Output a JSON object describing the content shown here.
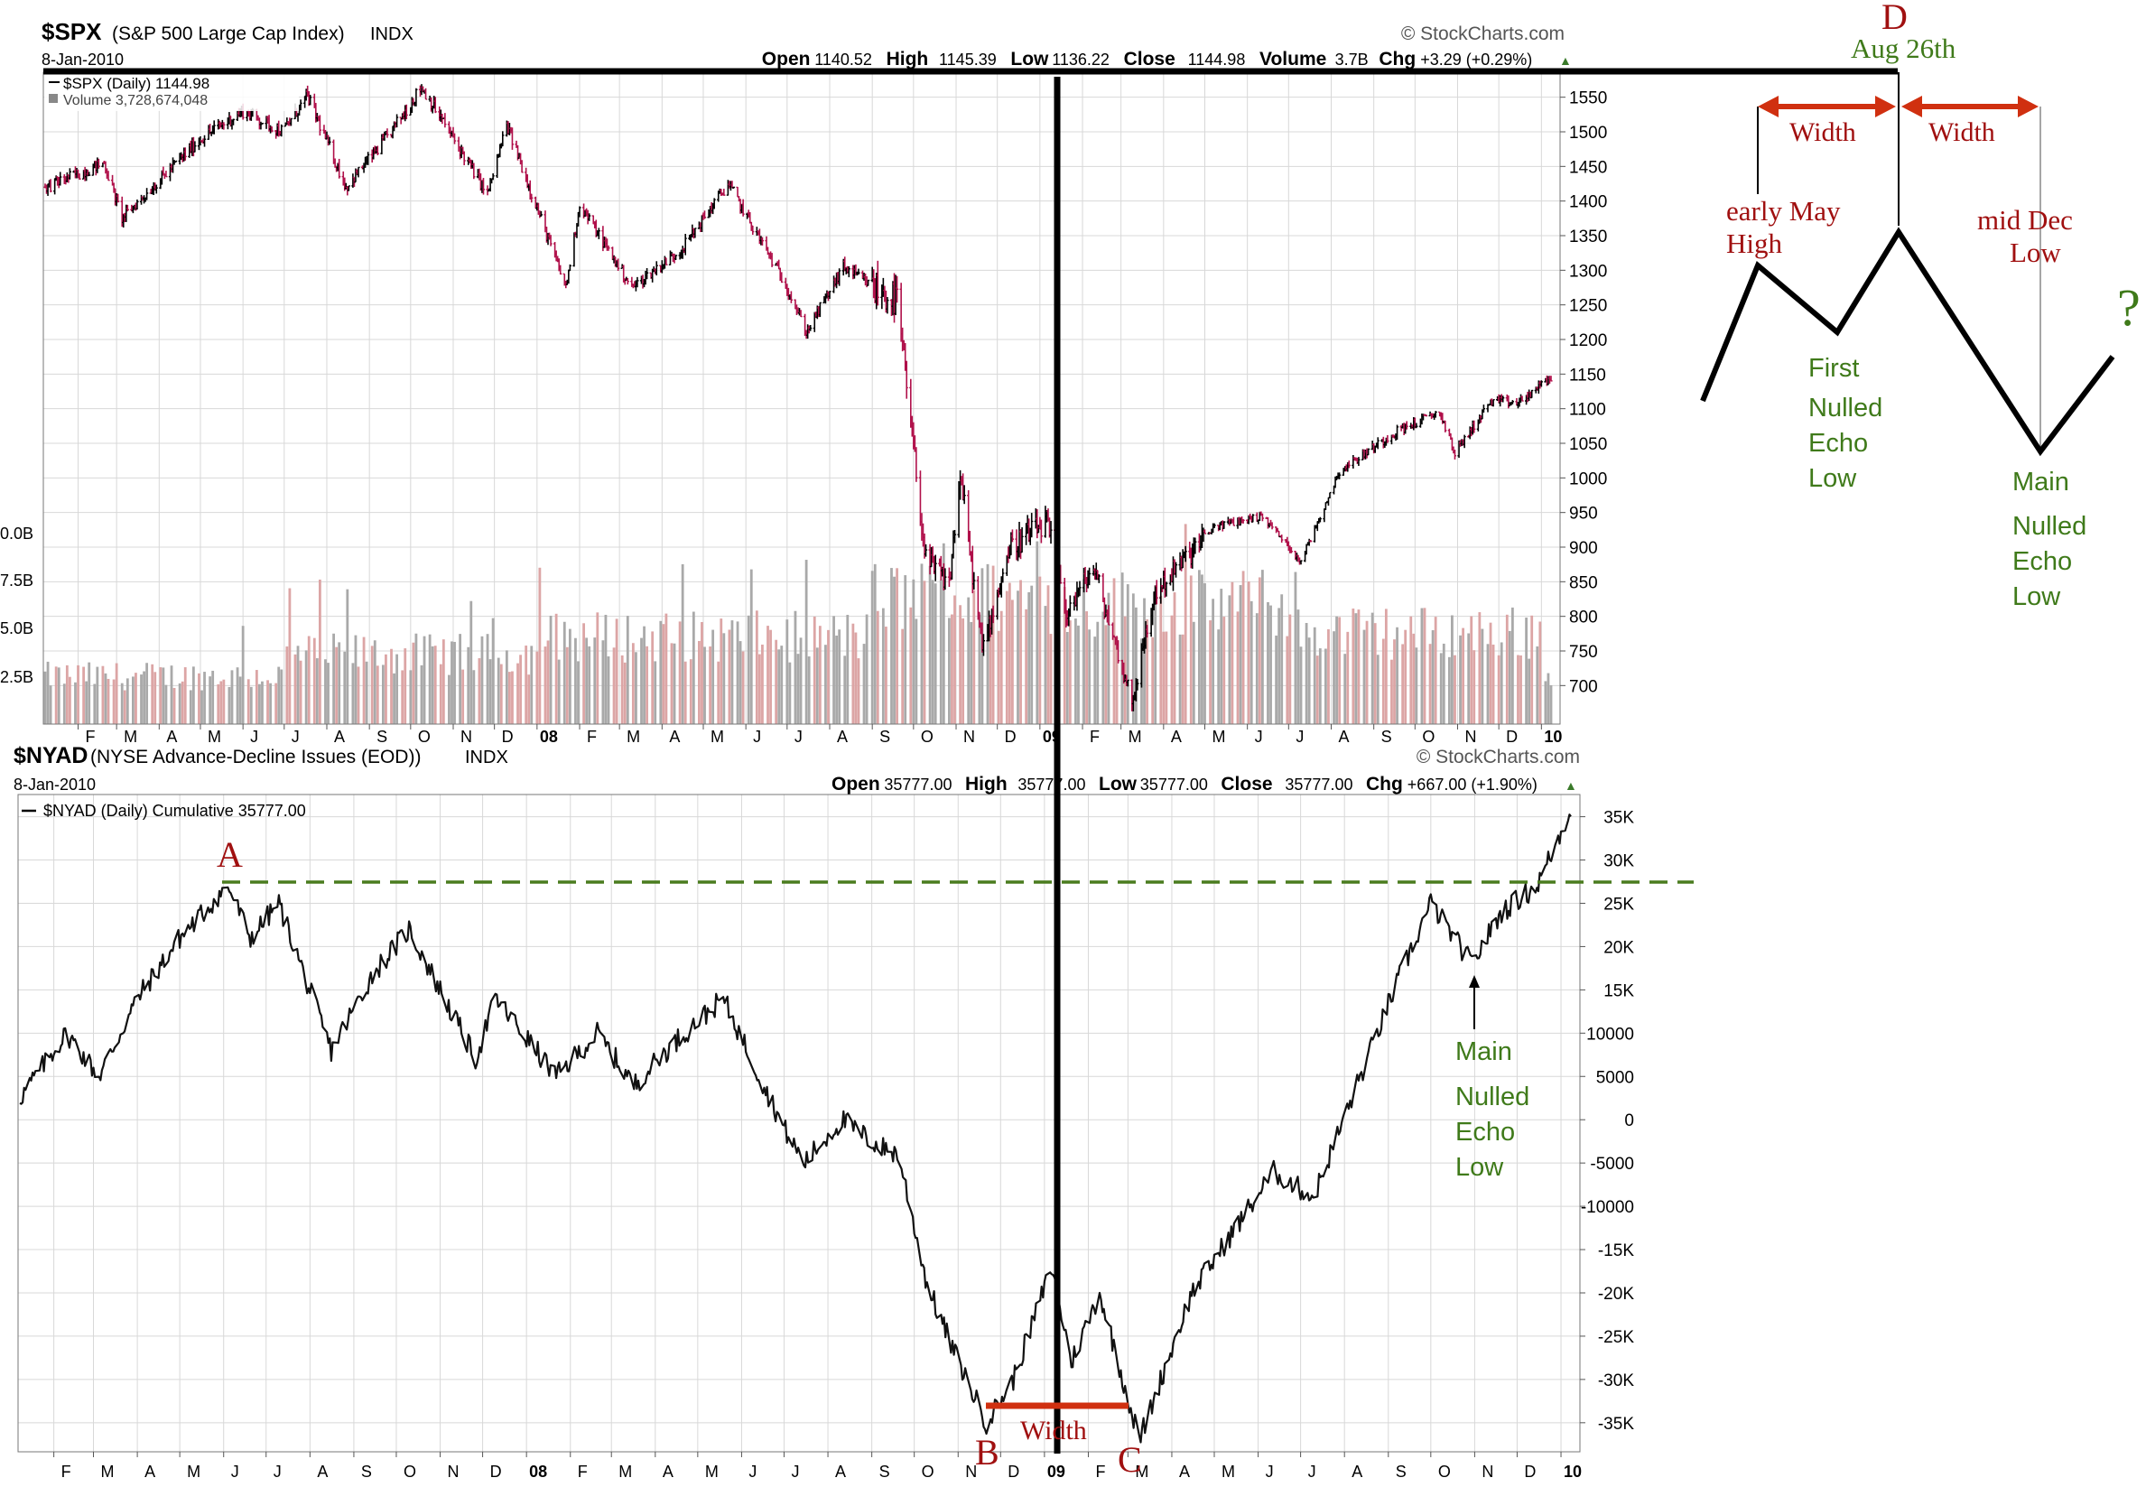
{
  "colors": {
    "up": "#000000",
    "down": "#b0104a",
    "vol_gray": "#a9a9a9",
    "vol_red": "#dca5a5",
    "grid": "#d8d8d8",
    "annot_red": "#a01010",
    "annot_green": "#3f7a1a",
    "arrow_red": "#d03010",
    "dash_green": "#4a7c1e"
  },
  "top_panel": {
    "symbol": "$SPX",
    "name": "(S&P 500 Large Cap Index)",
    "exchange": "INDX",
    "date": "8-Jan-2010",
    "source": "© StockCharts.com",
    "quote": [
      {
        "k": "Open",
        "v": "1140.52"
      },
      {
        "k": "High",
        "v": "1145.39"
      },
      {
        "k": "Low",
        "v": "1136.22"
      },
      {
        "k": "Close",
        "v": "1144.98"
      },
      {
        "k": "Volume",
        "v": "3.7B"
      },
      {
        "k": "Chg",
        "v": "+3.29 (+0.29%)"
      }
    ],
    "legend_price": "$SPX (Daily) 1144.98",
    "legend_volume": "Volume 3,728,674,048",
    "price_ticks": [
      1550,
      1500,
      1450,
      1400,
      1350,
      1300,
      1250,
      1200,
      1150,
      1100,
      1050,
      1000,
      950,
      900,
      850,
      800,
      750,
      700
    ],
    "volume_ticks": [
      "0.0B",
      "7.5B",
      "5.0B",
      "2.5B"
    ]
  },
  "bottom_panel": {
    "symbol": "$NYAD",
    "name": "(NYSE Advance-Decline Issues (EOD))",
    "exchange": "INDX",
    "date": "8-Jan-2010",
    "source": "© StockCharts.com",
    "quote": [
      {
        "k": "Open",
        "v": "35777.00"
      },
      {
        "k": "High",
        "v": "35777.00"
      },
      {
        "k": "Low",
        "v": "35777.00"
      },
      {
        "k": "Close",
        "v": "35777.00"
      },
      {
        "k": "Chg",
        "v": "+667.00 (+1.90%)"
      }
    ],
    "legend": "$NYAD (Daily) Cumulative 35777.00",
    "ticks": [
      "35K",
      "30K",
      "25K",
      "20K",
      "15K",
      "10000",
      "5000",
      "0",
      "-5000",
      "-10000",
      "-15K",
      "-20K",
      "-25K",
      "-30K",
      "-35K"
    ]
  },
  "x_axis_labels": [
    "F",
    "M",
    "A",
    "M",
    "J",
    "J",
    "A",
    "S",
    "O",
    "N",
    "D",
    "08",
    "F",
    "M",
    "A",
    "M",
    "J",
    "J",
    "A",
    "S",
    "O",
    "N",
    "D",
    "09",
    "F",
    "M",
    "A",
    "M",
    "J",
    "J",
    "A",
    "S",
    "O",
    "N",
    "D",
    "10"
  ],
  "annotations": {
    "A": "A",
    "B": "B",
    "C": "C",
    "D": "D",
    "aug": "Aug 26th",
    "width_bottom": "Width",
    "width_left": "Width",
    "width_right": "Width",
    "early_may_1": "early May",
    "early_may_2": "High",
    "mid_dec_1": "mid Dec",
    "mid_dec_2": "Low",
    "question": "?",
    "first_echo": [
      "First",
      "Nulled",
      "Echo",
      "Low"
    ],
    "main_echo_top": [
      "Main",
      "Nulled",
      "Echo",
      "Low"
    ],
    "main_echo_bottom": [
      "Main",
      "Nulled",
      "Echo",
      "Low"
    ]
  },
  "chart_data": [
    {
      "type": "bar",
      "title": "$SPX (S&P 500 Large Cap Index) INDX",
      "series_name": "$SPX (Daily)",
      "x_range": [
        "2007-01-08",
        "2010-01-08"
      ],
      "ylim": [
        660,
        1560
      ],
      "key_points": [
        {
          "date": "2007-01-08",
          "v": 1420
        },
        {
          "date": "2007-02-20",
          "v": 1455
        },
        {
          "date": "2007-03-05",
          "v": 1375
        },
        {
          "date": "2007-04-01",
          "v": 1430
        },
        {
          "date": "2007-05-01",
          "v": 1490
        },
        {
          "date": "2007-06-01",
          "v": 1530
        },
        {
          "date": "2007-06-30",
          "v": 1500
        },
        {
          "date": "2007-07-18",
          "v": 1552
        },
        {
          "date": "2007-08-15",
          "v": 1420
        },
        {
          "date": "2007-09-15",
          "v": 1495
        },
        {
          "date": "2007-10-09",
          "v": 1565
        },
        {
          "date": "2007-11-26",
          "v": 1410
        },
        {
          "date": "2007-12-10",
          "v": 1510
        },
        {
          "date": "2008-01-22",
          "v": 1275
        },
        {
          "date": "2008-02-01",
          "v": 1395
        },
        {
          "date": "2008-03-10",
          "v": 1275
        },
        {
          "date": "2008-04-15",
          "v": 1330
        },
        {
          "date": "2008-05-19",
          "v": 1425
        },
        {
          "date": "2008-06-30",
          "v": 1280
        },
        {
          "date": "2008-07-15",
          "v": 1210
        },
        {
          "date": "2008-08-11",
          "v": 1305
        },
        {
          "date": "2008-09-02",
          "v": 1275
        },
        {
          "date": "2008-09-19",
          "v": 1255
        },
        {
          "date": "2008-10-10",
          "v": 880
        },
        {
          "date": "2008-10-27",
          "v": 848
        },
        {
          "date": "2008-11-04",
          "v": 1005
        },
        {
          "date": "2008-11-20",
          "v": 752
        },
        {
          "date": "2008-12-10",
          "v": 900
        },
        {
          "date": "2009-01-06",
          "v": 935
        },
        {
          "date": "2009-01-20",
          "v": 805
        },
        {
          "date": "2009-02-09",
          "v": 870
        },
        {
          "date": "2009-03-09",
          "v": 677
        },
        {
          "date": "2009-03-26",
          "v": 835
        },
        {
          "date": "2009-05-08",
          "v": 930
        },
        {
          "date": "2009-06-12",
          "v": 945
        },
        {
          "date": "2009-07-10",
          "v": 880
        },
        {
          "date": "2009-08-07",
          "v": 1010
        },
        {
          "date": "2009-09-18",
          "v": 1068
        },
        {
          "date": "2009-10-19",
          "v": 1095
        },
        {
          "date": "2009-10-30",
          "v": 1036
        },
        {
          "date": "2009-11-25",
          "v": 1110
        },
        {
          "date": "2009-12-15",
          "v": 1108
        },
        {
          "date": "2010-01-08",
          "v": 1145
        }
      ],
      "volume_ylim": [
        0,
        10
      ],
      "volume_unit": "B"
    },
    {
      "type": "line",
      "title": "$NYAD (NYSE Advance-Decline Issues (EOD)) INDX",
      "series_name": "$NYAD (Daily) Cumulative",
      "x_range": [
        "2007-01-08",
        "2010-01-08"
      ],
      "ylim": [
        -37000,
        36000
      ],
      "key_points": [
        {
          "date": "2007-01-08",
          "v": 2500
        },
        {
          "date": "2007-02-10",
          "v": 10000
        },
        {
          "date": "2007-03-05",
          "v": 5000
        },
        {
          "date": "2007-04-01",
          "v": 14000
        },
        {
          "date": "2007-05-01",
          "v": 21000
        },
        {
          "date": "2007-06-04",
          "v": 27000
        },
        {
          "date": "2007-06-20",
          "v": 21000
        },
        {
          "date": "2007-07-10",
          "v": 25000
        },
        {
          "date": "2007-08-16",
          "v": 8000
        },
        {
          "date": "2007-09-15",
          "v": 17000
        },
        {
          "date": "2007-10-10",
          "v": 22000
        },
        {
          "date": "2007-11-26",
          "v": 7000
        },
        {
          "date": "2007-12-10",
          "v": 14000
        },
        {
          "date": "2008-01-22",
          "v": 5000
        },
        {
          "date": "2008-02-20",
          "v": 10000
        },
        {
          "date": "2008-03-17",
          "v": 4000
        },
        {
          "date": "2008-04-15",
          "v": 9000
        },
        {
          "date": "2008-05-19",
          "v": 14000
        },
        {
          "date": "2008-07-01",
          "v": -1000
        },
        {
          "date": "2008-07-15",
          "v": -5000
        },
        {
          "date": "2008-08-11",
          "v": 0
        },
        {
          "date": "2008-09-05",
          "v": -3000
        },
        {
          "date": "2008-09-20",
          "v": -4000
        },
        {
          "date": "2008-10-10",
          "v": -19000
        },
        {
          "date": "2008-10-27",
          "v": -26000
        },
        {
          "date": "2008-11-21",
          "v": -35000
        },
        {
          "date": "2008-12-10",
          "v": -30000
        },
        {
          "date": "2009-01-06",
          "v": -17000
        },
        {
          "date": "2009-01-20",
          "v": -28000
        },
        {
          "date": "2009-02-09",
          "v": -20000
        },
        {
          "date": "2009-03-09",
          "v": -37000
        },
        {
          "date": "2009-04-15",
          "v": -20000
        },
        {
          "date": "2009-06-12",
          "v": -6000
        },
        {
          "date": "2009-07-10",
          "v": -9000
        },
        {
          "date": "2009-09-05",
          "v": 15000
        },
        {
          "date": "2009-10-01",
          "v": 25000
        },
        {
          "date": "2009-10-30",
          "v": 18000
        },
        {
          "date": "2009-11-20",
          "v": 24000
        },
        {
          "date": "2009-12-15",
          "v": 27000
        },
        {
          "date": "2010-01-08",
          "v": 35777
        }
      ],
      "reference_line": {
        "style": "dashed",
        "value": 27000
      }
    }
  ]
}
